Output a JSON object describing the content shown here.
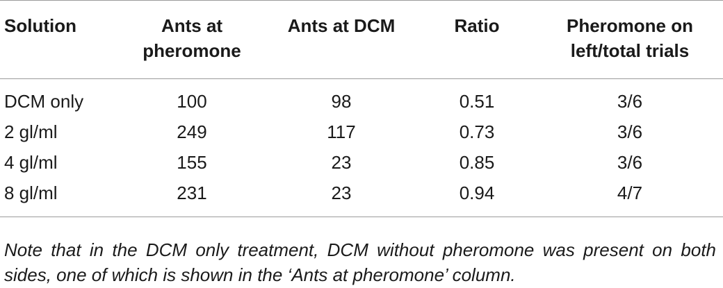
{
  "table": {
    "headers": [
      "Solution",
      "Ants at pheromone",
      "Ants at DCM",
      "Ratio",
      "Pheromone on left/total trials"
    ],
    "rows": [
      [
        "DCM only",
        "100",
        "98",
        "0.51",
        "3/6"
      ],
      [
        "2 gl/ml",
        "249",
        "117",
        "0.73",
        "3/6"
      ],
      [
        "4 gl/ml",
        "155",
        "23",
        "0.85",
        "3/6"
      ],
      [
        "8 gl/ml",
        "231",
        "23",
        "0.94",
        "4/7"
      ]
    ]
  },
  "note": "Note that in the DCM only treatment, DCM without pheromone was present on both sides, one of which is shown in the ‘Ants at pheromone’ column."
}
